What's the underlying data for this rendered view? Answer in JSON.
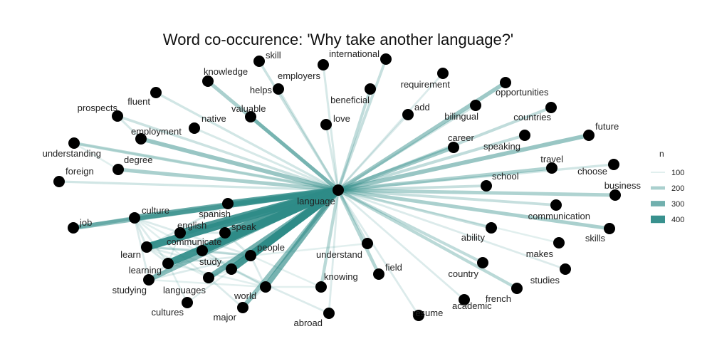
{
  "chart_data": {
    "type": "network",
    "title": "Word co-occurence: 'Why take another language?'",
    "legend": {
      "title": "n",
      "placement": "right",
      "entries": [
        {
          "label": "100",
          "value": 100
        },
        {
          "label": "200",
          "value": 200
        },
        {
          "label": "300",
          "value": 300
        },
        {
          "label": "400",
          "value": 400
        }
      ]
    },
    "edge_color": "#2e8b87",
    "node_color": "#000000",
    "nodes": [
      "language",
      "skill",
      "international",
      "knowledge",
      "employers",
      "helps",
      "beneficial",
      "requirement",
      "fluent",
      "opportunities",
      "add",
      "bilingual",
      "countries",
      "prospects",
      "native",
      "valuable",
      "love",
      "employment",
      "future",
      "career",
      "speaking",
      "understanding",
      "degree",
      "travel",
      "choose",
      "foreign",
      "school",
      "business",
      "culture",
      "spanish",
      "job",
      "communication",
      "english",
      "speak",
      "skills",
      "communicate",
      "ability",
      "learn",
      "people",
      "makes",
      "understand",
      "learning",
      "study",
      "field",
      "studies",
      "country",
      "studying",
      "knowing",
      "languages",
      "world",
      "french",
      "academic",
      "cultures",
      "resume",
      "major",
      "abroad"
    ],
    "edges": [
      {
        "from": "language",
        "to": "people",
        "n": 420
      },
      {
        "from": "language",
        "to": "communicate",
        "n": 410
      },
      {
        "from": "language",
        "to": "learn",
        "n": 400
      },
      {
        "from": "language",
        "to": "learning",
        "n": 390
      },
      {
        "from": "language",
        "to": "study",
        "n": 380
      },
      {
        "from": "language",
        "to": "english",
        "n": 370
      },
      {
        "from": "language",
        "to": "speak",
        "n": 360
      },
      {
        "from": "language",
        "to": "spanish",
        "n": 350
      },
      {
        "from": "language",
        "to": "culture",
        "n": 320
      },
      {
        "from": "language",
        "to": "languages",
        "n": 300
      },
      {
        "from": "language",
        "to": "world",
        "n": 290
      },
      {
        "from": "language",
        "to": "studying",
        "n": 260
      },
      {
        "from": "language",
        "to": "job",
        "n": 250
      },
      {
        "from": "language",
        "to": "major",
        "n": 240
      },
      {
        "from": "language",
        "to": "employment",
        "n": 230
      },
      {
        "from": "language",
        "to": "future",
        "n": 230
      },
      {
        "from": "language",
        "to": "career",
        "n": 220
      },
      {
        "from": "language",
        "to": "opportunities",
        "n": 220
      },
      {
        "from": "language",
        "to": "valuable",
        "n": 200
      },
      {
        "from": "language",
        "to": "degree",
        "n": 200
      },
      {
        "from": "language",
        "to": "skills",
        "n": 200
      },
      {
        "from": "language",
        "to": "knowledge",
        "n": 200
      },
      {
        "from": "language",
        "to": "business",
        "n": 190
      },
      {
        "from": "language",
        "to": "travel",
        "n": 190
      },
      {
        "from": "language",
        "to": "field",
        "n": 180
      },
      {
        "from": "language",
        "to": "understanding",
        "n": 170
      },
      {
        "from": "language",
        "to": "knowing",
        "n": 170
      },
      {
        "from": "language",
        "to": "french",
        "n": 170
      },
      {
        "from": "language",
        "to": "beneficial",
        "n": 160
      },
      {
        "from": "language",
        "to": "country",
        "n": 160
      },
      {
        "from": "language",
        "to": "speaking",
        "n": 160
      },
      {
        "from": "language",
        "to": "countries",
        "n": 160
      },
      {
        "from": "language",
        "to": "ability",
        "n": 150
      },
      {
        "from": "language",
        "to": "communication",
        "n": 150
      },
      {
        "from": "language",
        "to": "school",
        "n": 150
      },
      {
        "from": "language",
        "to": "international",
        "n": 150
      },
      {
        "from": "language",
        "to": "skill",
        "n": 140
      },
      {
        "from": "language",
        "to": "prospects",
        "n": 140
      },
      {
        "from": "language",
        "to": "understand",
        "n": 140
      },
      {
        "from": "language",
        "to": "foreign",
        "n": 130
      },
      {
        "from": "language",
        "to": "fluent",
        "n": 130
      },
      {
        "from": "language",
        "to": "choose",
        "n": 130
      },
      {
        "from": "language",
        "to": "bilingual",
        "n": 130
      },
      {
        "from": "language",
        "to": "love",
        "n": 120
      },
      {
        "from": "language",
        "to": "helps",
        "n": 120
      },
      {
        "from": "language",
        "to": "employers",
        "n": 120
      },
      {
        "from": "language",
        "to": "native",
        "n": 120
      },
      {
        "from": "language",
        "to": "requirement",
        "n": 110
      },
      {
        "from": "language",
        "to": "add",
        "n": 110
      },
      {
        "from": "language",
        "to": "studies",
        "n": 110
      },
      {
        "from": "language",
        "to": "academic",
        "n": 110
      },
      {
        "from": "language",
        "to": "resume",
        "n": 110
      },
      {
        "from": "language",
        "to": "abroad",
        "n": 110
      },
      {
        "from": "language",
        "to": "makes",
        "n": 100
      },
      {
        "from": "language",
        "to": "cultures",
        "n": 100
      },
      {
        "from": "language",
        "to": "understanding",
        "n": 100
      },
      {
        "from": "job",
        "to": "culture",
        "n": 200
      },
      {
        "from": "culture",
        "to": "learn",
        "n": 120
      },
      {
        "from": "culture",
        "to": "learning",
        "n": 110
      },
      {
        "from": "culture",
        "to": "studying",
        "n": 110
      },
      {
        "from": "culture",
        "to": "people",
        "n": 110
      },
      {
        "from": "culture",
        "to": "world",
        "n": 100
      },
      {
        "from": "culture",
        "to": "languages",
        "n": 100
      },
      {
        "from": "culture",
        "to": "spanish",
        "n": 100
      },
      {
        "from": "learn",
        "to": "communicate",
        "n": 130
      },
      {
        "from": "learn",
        "to": "spanish",
        "n": 120
      },
      {
        "from": "learn",
        "to": "study",
        "n": 110
      },
      {
        "from": "learn",
        "to": "learning",
        "n": 110
      },
      {
        "from": "learn",
        "to": "people",
        "n": 110
      },
      {
        "from": "learn",
        "to": "languages",
        "n": 100
      },
      {
        "from": "learning",
        "to": "studying",
        "n": 120
      },
      {
        "from": "learning",
        "to": "people",
        "n": 110
      },
      {
        "from": "learning",
        "to": "english",
        "n": 100
      },
      {
        "from": "learning",
        "to": "world",
        "n": 100
      },
      {
        "from": "learning",
        "to": "cultures",
        "n": 100
      },
      {
        "from": "studying",
        "to": "people",
        "n": 110
      },
      {
        "from": "studying",
        "to": "world",
        "n": 100
      },
      {
        "from": "studying",
        "to": "communicate",
        "n": 100
      },
      {
        "from": "english",
        "to": "speak",
        "n": 120
      },
      {
        "from": "english",
        "to": "communicate",
        "n": 110
      },
      {
        "from": "english",
        "to": "study",
        "n": 100
      },
      {
        "from": "speak",
        "to": "people",
        "n": 120
      },
      {
        "from": "speak",
        "to": "communicate",
        "n": 100
      },
      {
        "from": "communicate",
        "to": "people",
        "n": 130
      },
      {
        "from": "communicate",
        "to": "world",
        "n": 100
      },
      {
        "from": "people",
        "to": "world",
        "n": 110
      },
      {
        "from": "people",
        "to": "languages",
        "n": 110
      },
      {
        "from": "people",
        "to": "study",
        "n": 100
      },
      {
        "from": "people",
        "to": "knowing",
        "n": 100
      },
      {
        "from": "people",
        "to": "understand",
        "n": 100
      },
      {
        "from": "study",
        "to": "abroad",
        "n": 110
      },
      {
        "from": "study",
        "to": "languages",
        "n": 100
      },
      {
        "from": "languages",
        "to": "major",
        "n": 110
      },
      {
        "from": "world",
        "to": "major",
        "n": 100
      },
      {
        "from": "world",
        "to": "knowing",
        "n": 100
      },
      {
        "from": "employment",
        "to": "prospects",
        "n": 120
      },
      {
        "from": "understanding",
        "to": "degree",
        "n": 100
      }
    ]
  }
}
